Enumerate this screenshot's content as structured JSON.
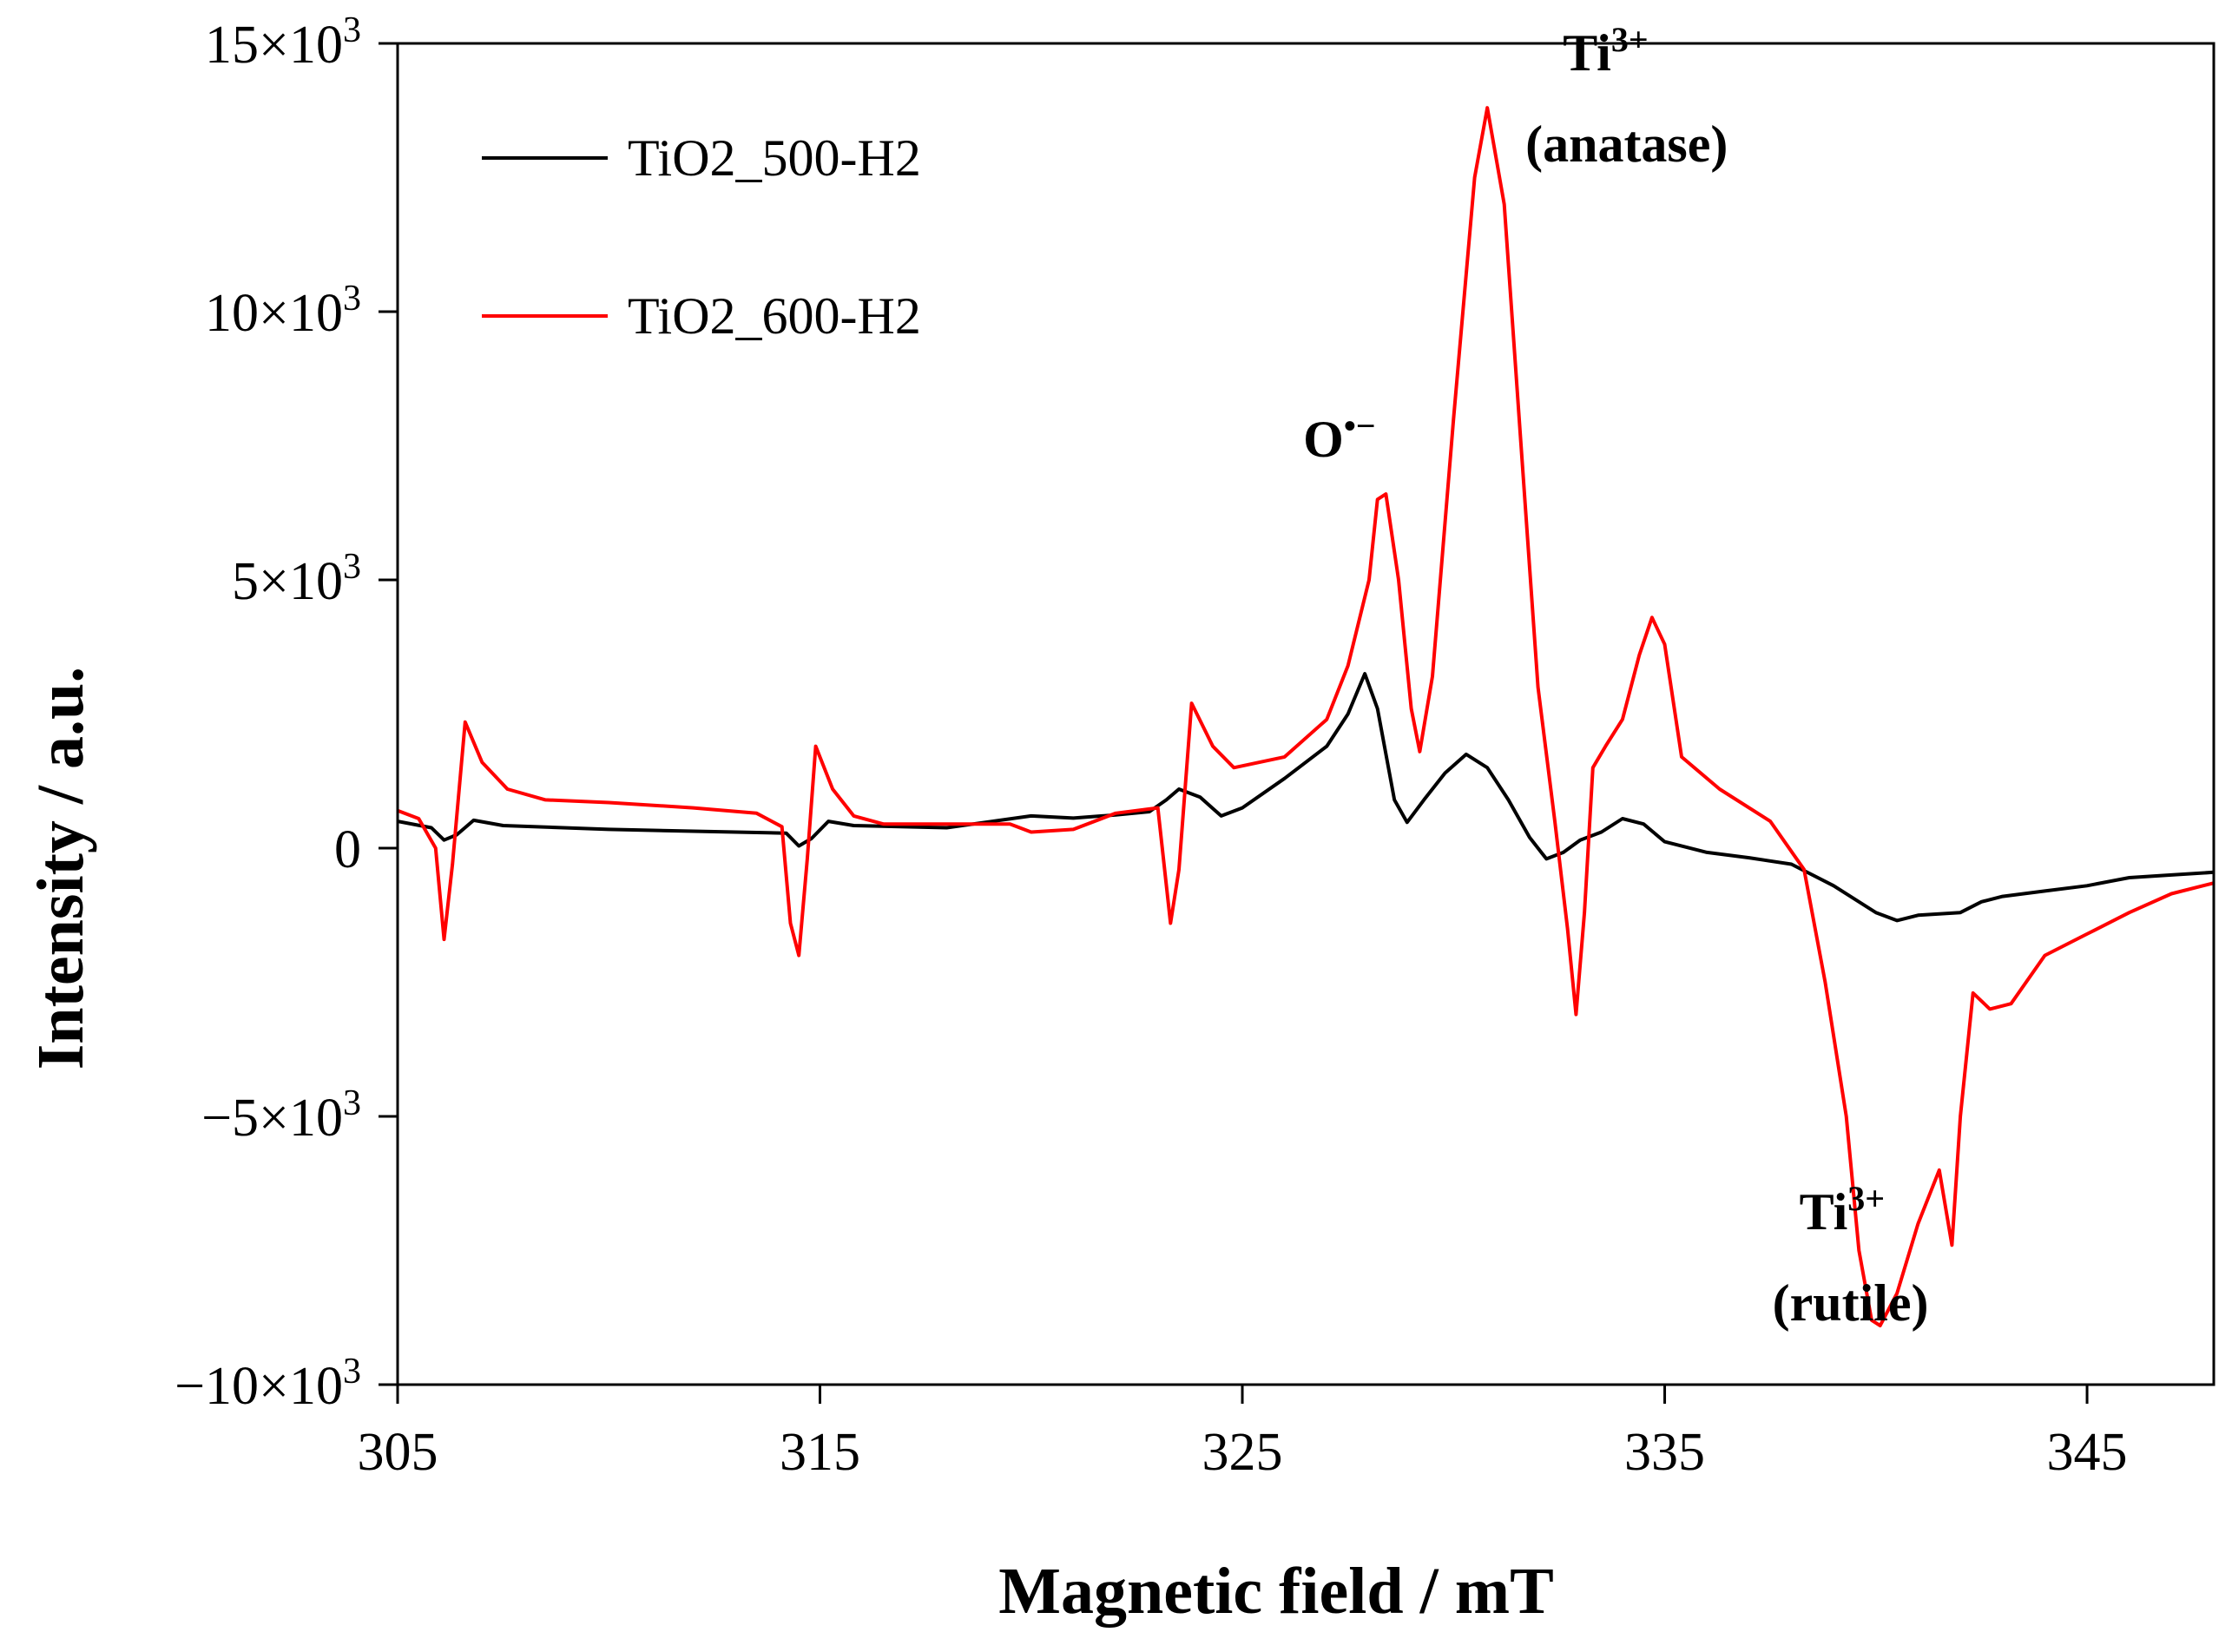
{
  "chart_data": {
    "type": "line",
    "xlabel": "Magnetic field / mT",
    "ylabel": "Intensity / a.u.",
    "xlim": [
      305,
      348
    ],
    "ylim": [
      -10000,
      15000
    ],
    "x_ticks": [
      305,
      315,
      325,
      335,
      345
    ],
    "x_tick_labels": [
      "305",
      "315",
      "325",
      "335",
      "345"
    ],
    "y_ticks": [
      -10000,
      -5000,
      0,
      5000,
      10000,
      15000
    ],
    "y_tick_labels": [
      {
        "mant": "−10×10",
        "exp": "3"
      },
      {
        "mant": "−5×10",
        "exp": "3"
      },
      {
        "mant": "0",
        "exp": ""
      },
      {
        "mant": "5×10",
        "exp": "3"
      },
      {
        "mant": "10×10",
        "exp": "3"
      },
      {
        "mant": "15×10",
        "exp": "3"
      }
    ],
    "legend_position": "top-left",
    "series": [
      {
        "name": "TiO2_500-H2",
        "color": "#000000",
        "points": [
          [
            305,
            500
          ],
          [
            305.8,
            380
          ],
          [
            306.1,
            150
          ],
          [
            306.4,
            250
          ],
          [
            306.8,
            520
          ],
          [
            307.5,
            420
          ],
          [
            310,
            350
          ],
          [
            313,
            300
          ],
          [
            314.2,
            280
          ],
          [
            314.5,
            40
          ],
          [
            314.8,
            180
          ],
          [
            315.2,
            500
          ],
          [
            315.8,
            420
          ],
          [
            318,
            380
          ],
          [
            320,
            600
          ],
          [
            321,
            560
          ],
          [
            322,
            620
          ],
          [
            322.8,
            680
          ],
          [
            323.2,
            900
          ],
          [
            323.5,
            1100
          ],
          [
            324,
            950
          ],
          [
            324.5,
            600
          ],
          [
            325,
            750
          ],
          [
            326,
            1300
          ],
          [
            327,
            1900
          ],
          [
            327.5,
            2500
          ],
          [
            327.9,
            3250
          ],
          [
            328.2,
            2600
          ],
          [
            328.6,
            900
          ],
          [
            328.9,
            480
          ],
          [
            329.3,
            900
          ],
          [
            329.8,
            1400
          ],
          [
            330.3,
            1750
          ],
          [
            330.8,
            1500
          ],
          [
            331.3,
            900
          ],
          [
            331.8,
            200
          ],
          [
            332.2,
            -200
          ],
          [
            332.6,
            -80
          ],
          [
            333,
            150
          ],
          [
            333.5,
            300
          ],
          [
            334,
            550
          ],
          [
            334.5,
            450
          ],
          [
            335,
            120
          ],
          [
            336,
            -80
          ],
          [
            337,
            -180
          ],
          [
            338,
            -300
          ],
          [
            339,
            -700
          ],
          [
            340,
            -1200
          ],
          [
            340.5,
            -1350
          ],
          [
            341,
            -1250
          ],
          [
            342,
            -1200
          ],
          [
            342.5,
            -1000
          ],
          [
            343,
            -900
          ],
          [
            344,
            -800
          ],
          [
            345,
            -700
          ],
          [
            346,
            -550
          ],
          [
            347,
            -500
          ],
          [
            348,
            -450
          ]
        ]
      },
      {
        "name": "TiO2_600-H2",
        "color": "#ff0000",
        "points": [
          [
            305,
            700
          ],
          [
            305.5,
            550
          ],
          [
            305.9,
            0
          ],
          [
            306.1,
            -1700
          ],
          [
            306.3,
            -300
          ],
          [
            306.6,
            2350
          ],
          [
            307,
            1600
          ],
          [
            307.6,
            1100
          ],
          [
            308.5,
            900
          ],
          [
            310,
            850
          ],
          [
            312,
            750
          ],
          [
            313.5,
            650
          ],
          [
            314.1,
            400
          ],
          [
            314.3,
            -1400
          ],
          [
            314.5,
            -2000
          ],
          [
            314.7,
            -200
          ],
          [
            314.9,
            1900
          ],
          [
            315.3,
            1100
          ],
          [
            315.8,
            600
          ],
          [
            316.5,
            450
          ],
          [
            318,
            450
          ],
          [
            319.5,
            450
          ],
          [
            320,
            300
          ],
          [
            321,
            350
          ],
          [
            322,
            650
          ],
          [
            323,
            750
          ],
          [
            323.3,
            -1400
          ],
          [
            323.5,
            -400
          ],
          [
            323.8,
            2700
          ],
          [
            324.3,
            1900
          ],
          [
            324.8,
            1500
          ],
          [
            326,
            1700
          ],
          [
            327,
            2400
          ],
          [
            327.5,
            3400
          ],
          [
            328,
            5000
          ],
          [
            328.2,
            6500
          ],
          [
            328.4,
            6600
          ],
          [
            328.7,
            5000
          ],
          [
            329,
            2600
          ],
          [
            329.2,
            1800
          ],
          [
            329.5,
            3200
          ],
          [
            330,
            8000
          ],
          [
            330.5,
            12500
          ],
          [
            330.8,
            13800
          ],
          [
            331.2,
            12000
          ],
          [
            331.6,
            7500
          ],
          [
            332,
            3000
          ],
          [
            332.4,
            500
          ],
          [
            332.7,
            -1500
          ],
          [
            332.9,
            -3100
          ],
          [
            333.1,
            -1200
          ],
          [
            333.3,
            1500
          ],
          [
            333.6,
            1900
          ],
          [
            334,
            2400
          ],
          [
            334.4,
            3600
          ],
          [
            334.7,
            4300
          ],
          [
            335,
            3800
          ],
          [
            335.4,
            1700
          ],
          [
            336.3,
            1100
          ],
          [
            337.5,
            500
          ],
          [
            338.3,
            -400
          ],
          [
            338.8,
            -2500
          ],
          [
            339.3,
            -5000
          ],
          [
            339.6,
            -7500
          ],
          [
            339.9,
            -8800
          ],
          [
            340.1,
            -8900
          ],
          [
            340.5,
            -8300
          ],
          [
            341,
            -7000
          ],
          [
            341.5,
            -6000
          ],
          [
            341.8,
            -7400
          ],
          [
            342,
            -5000
          ],
          [
            342.3,
            -2700
          ],
          [
            342.7,
            -3000
          ],
          [
            343.2,
            -2900
          ],
          [
            344,
            -2000
          ],
          [
            345,
            -1600
          ],
          [
            346,
            -1200
          ],
          [
            347,
            -850
          ],
          [
            348,
            -650
          ]
        ]
      }
    ],
    "annotations": [
      {
        "text": "O",
        "sup": "•−",
        "x": 327.3,
        "y": 7300
      },
      {
        "text": "Ti",
        "sup": "3+",
        "x": 333.6,
        "y": 14500
      },
      {
        "text": "(anatase)",
        "sup": "",
        "x": 334.1,
        "y": 12800
      },
      {
        "text": "Ti",
        "sup": "3+",
        "x": 339.2,
        "y": -7100
      },
      {
        "text": "(rutile)",
        "sup": "",
        "x": 339.4,
        "y": -8800
      }
    ]
  }
}
